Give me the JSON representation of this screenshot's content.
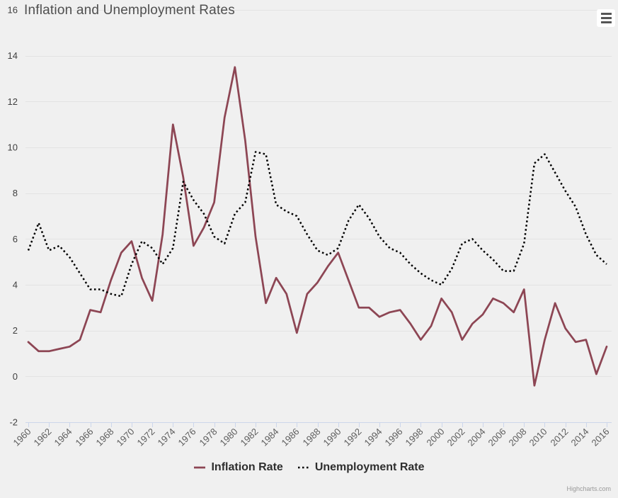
{
  "header": {
    "title": "Inflation and Unemployment Rates"
  },
  "credits": {
    "text": "Highcharts.com"
  },
  "menu": {
    "icon": "hamburger-icon"
  },
  "colors": {
    "background": "#f0f0f0",
    "grid_line": "#e3e3e3",
    "axis_line": "#ccd6eb",
    "tick": "#ccd6eb",
    "x_label": "#5c5c5c",
    "y_label": "#3f3f3f",
    "title_text": "#4f4f4f",
    "legend_text": "#2e2e2e",
    "credits_text": "#999999",
    "menu_icon": "#555555",
    "menu_background": "#ffffff",
    "inflation_line": "#8d4654",
    "unemployment_line": "#000000"
  },
  "chart_data": {
    "type": "line",
    "title": "Inflation and Unemployment Rates",
    "xlabel": "",
    "ylabel": "",
    "ylim": [
      -2,
      16
    ],
    "y_ticks": [
      -2,
      0,
      2,
      4,
      6,
      8,
      10,
      12,
      14,
      16
    ],
    "x_start": 1960,
    "x_end": 2016,
    "x_ticks": [
      1960,
      1962,
      1964,
      1966,
      1968,
      1970,
      1972,
      1974,
      1976,
      1978,
      1980,
      1982,
      1984,
      1986,
      1988,
      1990,
      1992,
      1994,
      1996,
      1998,
      2000,
      2002,
      2004,
      2006,
      2008,
      2010,
      2012,
      2014,
      2016
    ],
    "x": [
      1960,
      1961,
      1962,
      1963,
      1964,
      1965,
      1966,
      1967,
      1968,
      1969,
      1970,
      1971,
      1972,
      1973,
      1974,
      1975,
      1976,
      1977,
      1978,
      1979,
      1980,
      1981,
      1982,
      1983,
      1984,
      1985,
      1986,
      1987,
      1988,
      1989,
      1990,
      1991,
      1992,
      1993,
      1994,
      1995,
      1996,
      1997,
      1998,
      1999,
      2000,
      2001,
      2002,
      2003,
      2004,
      2005,
      2006,
      2007,
      2008,
      2009,
      2010,
      2011,
      2012,
      2013,
      2014,
      2015,
      2016
    ],
    "grid": "horizontal",
    "legend_position": "bottom-center",
    "series": [
      {
        "name": "Inflation Rate",
        "color": "#8d4654",
        "dash": "solid",
        "values": [
          1.5,
          1.1,
          1.1,
          1.2,
          1.3,
          1.6,
          2.9,
          2.8,
          4.2,
          5.4,
          5.9,
          4.3,
          3.3,
          6.2,
          11.0,
          8.7,
          5.7,
          6.5,
          7.6,
          11.3,
          13.5,
          10.3,
          6.1,
          3.2,
          4.3,
          3.6,
          1.9,
          3.6,
          4.1,
          4.8,
          5.4,
          4.2,
          3.0,
          3.0,
          2.6,
          2.8,
          2.9,
          2.3,
          1.6,
          2.2,
          3.4,
          2.8,
          1.6,
          2.3,
          2.7,
          3.4,
          3.2,
          2.8,
          3.8,
          -0.4,
          1.6,
          3.2,
          2.1,
          1.5,
          1.6,
          0.1,
          1.3
        ]
      },
      {
        "name": "Unemployment Rate",
        "color": "#000000",
        "dash": "dot",
        "values": [
          5.5,
          6.7,
          5.5,
          5.7,
          5.2,
          4.5,
          3.8,
          3.8,
          3.6,
          3.5,
          4.9,
          5.9,
          5.6,
          4.9,
          5.6,
          8.5,
          7.7,
          7.1,
          6.1,
          5.8,
          7.1,
          7.6,
          9.8,
          9.7,
          7.5,
          7.2,
          7.0,
          6.2,
          5.5,
          5.3,
          5.6,
          6.8,
          7.5,
          6.9,
          6.1,
          5.6,
          5.4,
          4.9,
          4.5,
          4.2,
          4.0,
          4.7,
          5.8,
          6.0,
          5.5,
          5.1,
          4.6,
          4.6,
          5.8,
          9.3,
          9.7,
          8.9,
          8.1,
          7.4,
          6.2,
          5.3,
          4.9
        ]
      }
    ]
  }
}
